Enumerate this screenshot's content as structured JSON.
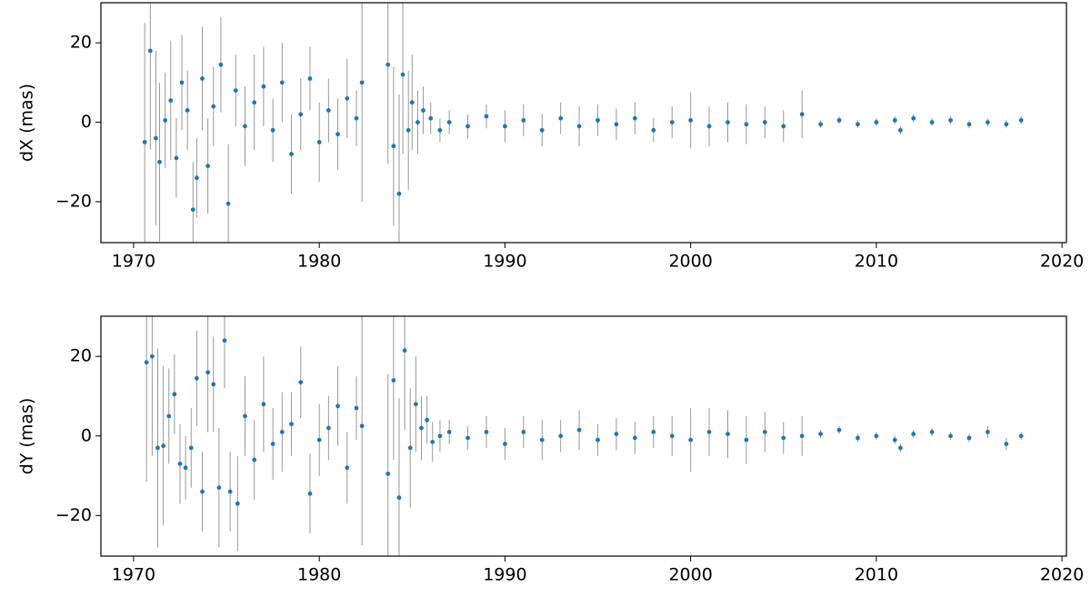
{
  "chart_data": [
    {
      "type": "scatter",
      "ylabel": "dX (mas)",
      "color": "#1f77b4",
      "error_color": "#999999",
      "xlim": [
        1968.24,
        2020.24
      ],
      "ylim": [
        -30.3,
        30.1
      ],
      "xticks": [
        1970,
        1980,
        1990,
        2000,
        2010,
        2020
      ],
      "yticks": [
        {
          "value": -20,
          "label": "−20"
        },
        0,
        20
      ],
      "x": [
        1970.6,
        1970.9,
        1971.2,
        1971.4,
        1971.7,
        1972.0,
        1972.3,
        1972.6,
        1972.9,
        1973.2,
        1973.4,
        1973.7,
        1974.0,
        1974.3,
        1974.7,
        1975.1,
        1975.5,
        1976.0,
        1976.5,
        1977.0,
        1977.5,
        1978.0,
        1978.5,
        1979.0,
        1979.5,
        1980.0,
        1980.5,
        1981.0,
        1981.5,
        1982.0,
        1982.3,
        1983.7,
        1984.0,
        1984.3,
        1984.5,
        1984.8,
        1985.0,
        1985.3,
        1985.6,
        1986.0,
        1986.5,
        1987,
        1988,
        1989,
        1990,
        1991,
        1992,
        1993,
        1994,
        1995,
        1996,
        1997,
        1998,
        1999,
        2000,
        2001,
        2002,
        2003,
        2004,
        2005,
        2006,
        2007,
        2008,
        2009,
        2010,
        2011,
        2011.3,
        2012,
        2013,
        2014,
        2015,
        2016,
        2017,
        2017.8
      ],
      "values": [
        -5,
        18,
        -4,
        -10,
        0.5,
        5.5,
        -9,
        10,
        3,
        -22,
        -14,
        11,
        -11,
        4,
        14.5,
        -20.5,
        8,
        -1,
        5,
        9,
        -2,
        10,
        -8,
        2,
        11,
        -5,
        3,
        -3,
        6,
        1,
        10,
        14.5,
        -6,
        -18,
        12,
        -2,
        5,
        0,
        3,
        1,
        -2,
        0,
        -1,
        1.5,
        -1,
        0.5,
        -2,
        1,
        -1,
        0.5,
        -0.5,
        1,
        -2,
        0,
        0.5,
        -1,
        0,
        -0.5,
        0,
        -1,
        2,
        -0.5,
        0.5,
        -0.5,
        0,
        0.5,
        -2,
        1,
        0,
        0.5,
        -0.5,
        0,
        -0.5,
        0.5
      ],
      "errors": [
        30,
        25,
        22,
        20,
        12,
        15,
        10,
        12,
        10,
        12,
        10,
        13,
        12,
        10,
        12,
        15,
        9,
        10,
        12,
        10,
        8,
        10,
        10,
        9,
        8,
        10,
        8,
        9,
        10,
        7,
        30,
        25,
        20,
        25,
        20,
        15,
        12,
        8,
        6,
        4,
        3,
        3,
        3,
        3,
        4,
        4,
        4,
        4,
        5,
        4,
        4,
        4,
        3,
        4,
        7,
        5,
        5,
        5,
        4,
        4,
        6,
        1,
        1,
        1,
        1,
        1,
        1,
        1,
        1,
        1,
        1,
        1,
        1,
        1
      ]
    },
    {
      "type": "scatter",
      "ylabel": "dY (mas)",
      "color": "#1f77b4",
      "error_color": "#999999",
      "xlim": [
        1968.24,
        2020.24
      ],
      "ylim": [
        -30.2,
        30.1
      ],
      "xticks": [
        1970,
        1980,
        1990,
        2000,
        2010,
        2020
      ],
      "yticks": [
        {
          "value": -20,
          "label": "−20"
        },
        0,
        20
      ],
      "x": [
        1970.7,
        1971.0,
        1971.3,
        1971.6,
        1971.9,
        1972.2,
        1972.5,
        1972.8,
        1973.1,
        1973.4,
        1973.7,
        1974.0,
        1974.3,
        1974.6,
        1974.9,
        1975.2,
        1975.6,
        1976.0,
        1976.5,
        1977.0,
        1977.5,
        1978.0,
        1978.5,
        1979.0,
        1979.5,
        1980.0,
        1980.5,
        1981.0,
        1981.5,
        1982.0,
        1982.3,
        1983.7,
        1984.0,
        1984.3,
        1984.6,
        1984.9,
        1985.2,
        1985.5,
        1985.8,
        1986.1,
        1986.5,
        1987,
        1988,
        1989,
        1990,
        1991,
        1992,
        1993,
        1994,
        1995,
        1996,
        1997,
        1998,
        1999,
        2000,
        2001,
        2002,
        2003,
        2004,
        2005,
        2006,
        2007,
        2008,
        2009,
        2010,
        2011,
        2011.3,
        2012,
        2013,
        2014,
        2015,
        2016,
        2017,
        2017.8
      ],
      "values": [
        18.5,
        20,
        -3,
        -2.5,
        5,
        10.5,
        -7,
        -8,
        -3,
        14.5,
        -14,
        16,
        13,
        -13,
        24,
        -14,
        -17,
        5,
        -6,
        8,
        -2,
        1,
        3,
        13.5,
        -14.5,
        -1,
        2,
        7.5,
        -8,
        7,
        2.5,
        -9.5,
        14,
        -15.5,
        21.5,
        -3,
        8,
        2,
        4,
        -1.5,
        0,
        1,
        -0.5,
        1,
        -2,
        1,
        -1,
        0,
        1.5,
        -1,
        0.5,
        -0.5,
        1,
        0,
        -1,
        1,
        0.5,
        -1,
        1,
        -0.5,
        0,
        0.5,
        1.5,
        -0.5,
        0,
        -1,
        -3,
        0.5,
        1,
        0,
        -0.5,
        1,
        -2,
        0
      ],
      "errors": [
        30,
        25,
        25,
        20,
        12,
        10,
        10,
        8,
        10,
        12,
        10,
        15,
        12,
        15,
        12,
        10,
        12,
        10,
        10,
        12,
        9,
        10,
        8,
        9,
        10,
        9,
        8,
        10,
        9,
        8,
        30,
        25,
        20,
        25,
        20,
        15,
        12,
        8,
        6,
        5,
        4,
        3,
        3,
        4,
        4,
        4,
        5,
        4,
        5,
        4,
        4,
        4,
        4,
        5,
        8,
        6,
        6,
        6,
        5,
        4,
        5,
        1,
        1,
        1,
        1,
        1,
        1,
        1,
        1,
        1,
        1,
        1.5,
        1.5,
        1
      ]
    }
  ]
}
